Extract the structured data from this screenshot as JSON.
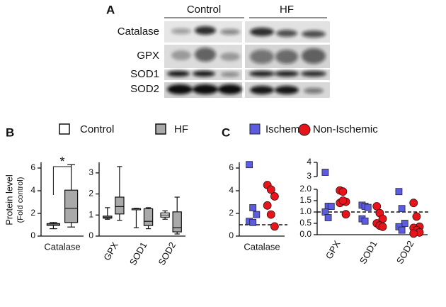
{
  "blot": {
    "panel": "A",
    "groups": [
      "Control",
      "HF"
    ],
    "rows": [
      "Catalase",
      "GPX",
      "SOD1",
      "SOD2"
    ]
  },
  "panels": [
    "B",
    "C"
  ],
  "chart_data": [
    {
      "type": "box",
      "ylabel": "Protein level",
      "ylabel_sub": "(Fold control)",
      "categories": [
        "Catalase"
      ],
      "series": [
        {
          "name": "Control",
          "color": "#ffffff",
          "values": [
            {
              "min": 0.65,
              "q1": 0.95,
              "median": 1.0,
              "q3": 1.1,
              "max": 1.2
            }
          ]
        },
        {
          "name": "HF",
          "color": "#a9a9a9",
          "values": [
            {
              "min": 0.8,
              "q1": 1.2,
              "median": 2.45,
              "q3": 4.05,
              "max": 6.3
            }
          ]
        }
      ],
      "annotation": "*",
      "ylim": [
        0,
        6.5
      ],
      "yticks": [
        0,
        2,
        4,
        6
      ]
    },
    {
      "type": "box",
      "categories": [
        "GPX",
        "SOD1",
        "SOD2"
      ],
      "series": [
        {
          "name": "Control",
          "color": "#ffffff",
          "values": [
            {
              "min": 0.8,
              "q1": 0.85,
              "median": 0.9,
              "q3": 0.95,
              "max": 1.35
            },
            {
              "min": 0.4,
              "q1": 1.25,
              "median": 1.3,
              "q3": 1.3,
              "max": 1.32
            },
            {
              "min": 0.8,
              "q1": 0.9,
              "median": 1.0,
              "q3": 1.1,
              "max": 1.2
            }
          ]
        },
        {
          "name": "HF",
          "color": "#a9a9a9",
          "values": [
            {
              "min": 0.75,
              "q1": 1.05,
              "median": 1.4,
              "q3": 1.85,
              "max": 3.3
            },
            {
              "min": 0.35,
              "q1": 0.5,
              "median": 0.7,
              "q3": 1.3,
              "max": 1.35
            },
            {
              "min": 0.1,
              "q1": 0.2,
              "median": 0.4,
              "q3": 1.15,
              "max": 1.85
            }
          ]
        }
      ],
      "ylim": [
        0,
        3.5
      ],
      "yticks": [
        0,
        1,
        2,
        3
      ]
    },
    {
      "type": "scatter",
      "categories": [
        "Catalase"
      ],
      "series": [
        {
          "name": "Ischemic",
          "color": "#5c5ce0",
          "marker": "square",
          "values": [
            [
              6.3,
              2.5,
              1.9,
              1.3,
              1.2
            ]
          ]
        },
        {
          "name": "Non-Ischemic",
          "color": "#e8141b",
          "marker": "circle",
          "values": [
            [
              4.5,
              4.1,
              3.5,
              2.7,
              1.9,
              0.85
            ]
          ]
        }
      ],
      "reference_line": 1,
      "ylim": [
        0,
        6.5
      ],
      "yticks": [
        0,
        2,
        4,
        6
      ]
    },
    {
      "type": "scatter",
      "categories": [
        "GPX",
        "SOD1",
        "SOD2"
      ],
      "series": [
        {
          "name": "Ischemic",
          "color": "#5c5ce0",
          "marker": "square",
          "values": [
            [
              3.3,
              1.25,
              1.25,
              1.0,
              0.75
            ],
            [
              1.3,
              1.25,
              1.2,
              0.7,
              0.6
            ],
            [
              1.9,
              1.15,
              0.5,
              0.35,
              0.2
            ]
          ]
        },
        {
          "name": "Non-Ischemic",
          "color": "#e8141b",
          "marker": "circle",
          "values": [
            [
              1.95,
              1.9,
              1.45,
              1.4,
              1.5,
              0.9
            ],
            [
              1.25,
              0.95,
              0.7,
              0.5,
              0.4,
              0.35
            ],
            [
              1.4,
              0.8,
              0.35,
              0.3,
              0.2,
              0.1,
              0.05
            ]
          ]
        }
      ],
      "reference_line": 1,
      "ylim": [
        0,
        2.0
      ],
      "yticks": [
        {
          "value": 0,
          "label": "0.0"
        },
        {
          "value": 0.5,
          "label": "0.5"
        },
        {
          "value": 1.0,
          "label": "1.0"
        },
        {
          "value": 1.5,
          "label": "1.5"
        },
        {
          "value": 2.0,
          "label": "2.0"
        }
      ],
      "ylim_upper": [
        3,
        4
      ],
      "yticks_upper": [
        3,
        4
      ]
    }
  ]
}
